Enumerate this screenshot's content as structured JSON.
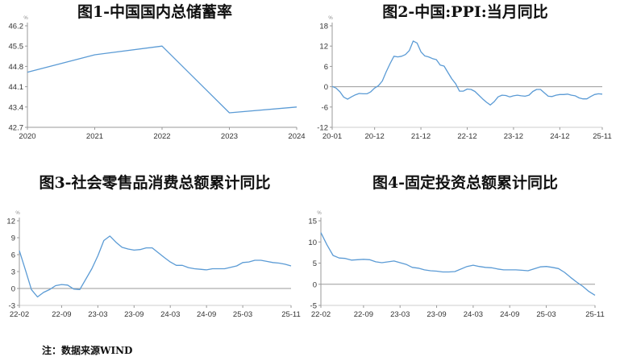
{
  "note": "注：数据来源WIND",
  "line_color": "#5B9BD5",
  "chart_data": [
    {
      "type": "line",
      "title": "图1-中国国内总储蓄率",
      "unit": "%",
      "ylim": [
        42.7,
        46.2
      ],
      "yticks": [
        "46.2",
        "45.5",
        "44.8",
        "44.1",
        "43.4",
        "42.7"
      ],
      "xlim": [
        2020,
        2024
      ],
      "xticks": [
        "2020",
        "2021",
        "2022",
        "2023",
        "2024"
      ],
      "x": [
        2020,
        2021,
        2022,
        2023,
        2024
      ],
      "y": [
        44.6,
        45.2,
        45.5,
        43.2,
        43.4
      ]
    },
    {
      "type": "line",
      "title": "图2-中国:PPI:当月同比",
      "unit": "%",
      "ylim": [
        -12,
        18
      ],
      "yticks": [
        "18",
        "12",
        "6",
        "0",
        "-6",
        "-12"
      ],
      "xlim": [
        "2020-01",
        "2025-11"
      ],
      "xticks": [
        "20-01",
        "20-12",
        "21-12",
        "22-12",
        "23-12",
        "24-12",
        "25-11"
      ],
      "x": [
        "2020-01",
        "2020-02",
        "2020-03",
        "2020-04",
        "2020-05",
        "2020-06",
        "2020-07",
        "2020-08",
        "2020-09",
        "2020-10",
        "2020-11",
        "2020-12",
        "2021-01",
        "2021-02",
        "2021-03",
        "2021-04",
        "2021-05",
        "2021-06",
        "2021-07",
        "2021-08",
        "2021-09",
        "2021-10",
        "2021-11",
        "2021-12",
        "2022-01",
        "2022-02",
        "2022-03",
        "2022-04",
        "2022-05",
        "2022-06",
        "2022-07",
        "2022-08",
        "2022-09",
        "2022-10",
        "2022-11",
        "2022-12",
        "2023-01",
        "2023-02",
        "2023-03",
        "2023-04",
        "2023-05",
        "2023-06",
        "2023-07",
        "2023-08",
        "2023-09",
        "2023-10",
        "2023-11",
        "2023-12",
        "2024-01",
        "2024-02",
        "2024-03",
        "2024-04",
        "2024-05",
        "2024-06",
        "2024-07",
        "2024-08",
        "2024-09",
        "2024-10",
        "2024-11",
        "2024-12",
        "2025-01",
        "2025-02",
        "2025-03",
        "2025-04",
        "2025-05",
        "2025-06",
        "2025-07",
        "2025-08",
        "2025-09",
        "2025-10",
        "2025-11"
      ],
      "y": [
        0.1,
        -0.4,
        -1.5,
        -3.1,
        -3.7,
        -3.0,
        -2.4,
        -2.0,
        -2.1,
        -2.1,
        -1.5,
        -0.4,
        0.3,
        1.7,
        4.4,
        6.8,
        9.0,
        8.8,
        9.0,
        9.5,
        10.7,
        13.5,
        12.9,
        10.3,
        9.1,
        8.8,
        8.3,
        8.0,
        6.4,
        6.1,
        4.2,
        2.3,
        0.9,
        -1.3,
        -1.3,
        -0.7,
        -0.8,
        -1.4,
        -2.5,
        -3.6,
        -4.6,
        -5.4,
        -4.4,
        -3.0,
        -2.5,
        -2.6,
        -3.0,
        -2.7,
        -2.5,
        -2.7,
        -2.8,
        -2.5,
        -1.4,
        -0.8,
        -0.8,
        -1.8,
        -2.8,
        -2.9,
        -2.5,
        -2.3,
        -2.3,
        -2.2,
        -2.5,
        -2.7,
        -3.3,
        -3.6,
        -3.6,
        -2.9,
        -2.3,
        -2.1,
        -2.2
      ]
    },
    {
      "type": "line",
      "title": "图3-社会零售品消费总额累计同比",
      "unit": "%",
      "ylim": [
        -3,
        12
      ],
      "yticks": [
        "12",
        "9",
        "6",
        "3",
        "0",
        "-3"
      ],
      "xlim": [
        "2022-02",
        "2025-11"
      ],
      "xticks": [
        "22-02",
        "22-09",
        "23-03",
        "23-09",
        "24-03",
        "24-09",
        "25-03",
        "25-11"
      ],
      "x": [
        "2022-02",
        "2022-03",
        "2022-04",
        "2022-05",
        "2022-06",
        "2022-07",
        "2022-08",
        "2022-09",
        "2022-10",
        "2022-11",
        "2022-12",
        "2023-02",
        "2023-03",
        "2023-04",
        "2023-05",
        "2023-06",
        "2023-07",
        "2023-08",
        "2023-09",
        "2023-10",
        "2023-11",
        "2023-12",
        "2024-02",
        "2024-03",
        "2024-04",
        "2024-05",
        "2024-06",
        "2024-07",
        "2024-08",
        "2024-09",
        "2024-10",
        "2024-11",
        "2024-12",
        "2025-02",
        "2025-03",
        "2025-04",
        "2025-05",
        "2025-06",
        "2025-07",
        "2025-08",
        "2025-09",
        "2025-10",
        "2025-11"
      ],
      "y": [
        6.7,
        3.3,
        -0.2,
        -1.5,
        -0.7,
        -0.2,
        0.5,
        0.7,
        0.6,
        -0.1,
        -0.2,
        3.5,
        5.8,
        8.5,
        9.3,
        8.2,
        7.3,
        7.0,
        6.8,
        6.9,
        7.2,
        7.2,
        5.5,
        4.7,
        4.1,
        4.1,
        3.7,
        3.5,
        3.4,
        3.3,
        3.5,
        3.5,
        3.5,
        4.0,
        4.6,
        4.7,
        5.0,
        5.0,
        4.8,
        4.6,
        4.5,
        4.3,
        4.0
      ]
    },
    {
      "type": "line",
      "title": "图4-固定投资总额累计同比",
      "unit": "%",
      "ylim": [
        -5,
        15
      ],
      "yticks": [
        "15",
        "10",
        "5",
        "0",
        "-5"
      ],
      "xlim": [
        "2022-02",
        "2025-11"
      ],
      "xticks": [
        "22-02",
        "22-09",
        "23-03",
        "23-09",
        "24-03",
        "24-09",
        "25-03",
        "25-11"
      ],
      "x": [
        "2022-02",
        "2022-03",
        "2022-04",
        "2022-05",
        "2022-06",
        "2022-07",
        "2022-08",
        "2022-09",
        "2022-10",
        "2022-11",
        "2022-12",
        "2023-02",
        "2023-03",
        "2023-04",
        "2023-05",
        "2023-06",
        "2023-07",
        "2023-08",
        "2023-09",
        "2023-10",
        "2023-11",
        "2023-12",
        "2024-02",
        "2024-03",
        "2024-04",
        "2024-05",
        "2024-06",
        "2024-07",
        "2024-08",
        "2024-09",
        "2024-10",
        "2024-11",
        "2024-12",
        "2025-02",
        "2025-03",
        "2025-04",
        "2025-05",
        "2025-06",
        "2025-07",
        "2025-08",
        "2025-09",
        "2025-10",
        "2025-11"
      ],
      "y": [
        12.2,
        9.3,
        6.8,
        6.2,
        6.1,
        5.7,
        5.8,
        5.9,
        5.8,
        5.3,
        5.1,
        5.5,
        5.1,
        4.7,
        4.0,
        3.8,
        3.4,
        3.2,
        3.1,
        2.9,
        2.9,
        3.0,
        4.2,
        4.5,
        4.2,
        4.0,
        3.9,
        3.6,
        3.4,
        3.4,
        3.4,
        3.3,
        3.2,
        4.1,
        4.2,
        4.0,
        3.7,
        2.8,
        1.6,
        0.5,
        -0.5,
        -1.7,
        -2.6
      ]
    }
  ]
}
